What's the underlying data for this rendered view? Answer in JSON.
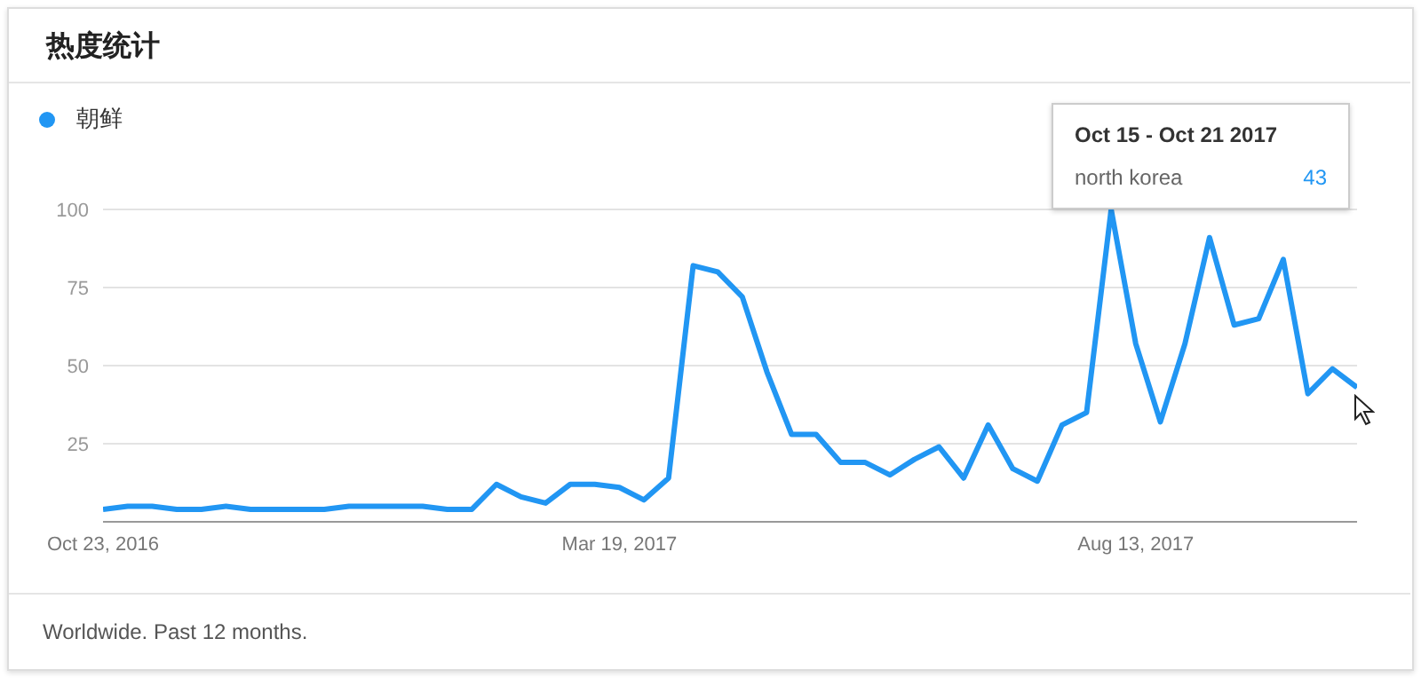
{
  "chart_data": {
    "type": "line",
    "title": "热度统计",
    "x": [
      "2016-10-23",
      "2016-10-30",
      "2016-11-06",
      "2016-11-13",
      "2016-11-20",
      "2016-11-27",
      "2016-12-04",
      "2016-12-11",
      "2016-12-18",
      "2016-12-25",
      "2017-01-01",
      "2017-01-08",
      "2017-01-15",
      "2017-01-22",
      "2017-01-29",
      "2017-02-05",
      "2017-02-12",
      "2017-02-19",
      "2017-02-26",
      "2017-03-05",
      "2017-03-12",
      "2017-03-19",
      "2017-03-26",
      "2017-04-02",
      "2017-04-09",
      "2017-04-16",
      "2017-04-23",
      "2017-04-30",
      "2017-05-07",
      "2017-05-14",
      "2017-05-21",
      "2017-05-28",
      "2017-06-04",
      "2017-06-11",
      "2017-06-18",
      "2017-06-25",
      "2017-07-02",
      "2017-07-09",
      "2017-07-16",
      "2017-07-23",
      "2017-07-30",
      "2017-08-06",
      "2017-08-13",
      "2017-08-20",
      "2017-08-27",
      "2017-09-03",
      "2017-09-10",
      "2017-09-17",
      "2017-09-24",
      "2017-10-01",
      "2017-10-08",
      "2017-10-15"
    ],
    "series": [
      {
        "name": "朝鲜",
        "color": "#2196f3",
        "values": [
          4,
          5,
          5,
          4,
          4,
          5,
          4,
          4,
          4,
          4,
          5,
          5,
          5,
          5,
          4,
          4,
          12,
          8,
          6,
          12,
          12,
          11,
          7,
          14,
          82,
          80,
          72,
          48,
          28,
          28,
          19,
          19,
          15,
          20,
          24,
          14,
          31,
          17,
          13,
          31,
          35,
          100,
          57,
          32,
          57,
          91,
          63,
          65,
          84,
          41,
          49,
          43
        ]
      }
    ],
    "xlim": [
      "2016-10-23",
      "2017-10-15"
    ],
    "xticks": [
      {
        "value": "2016-10-23",
        "label": "Oct 23, 2016"
      },
      {
        "value": "2017-03-19",
        "label": "Mar 19, 2017"
      },
      {
        "value": "2017-08-13",
        "label": "Aug 13, 2017"
      }
    ],
    "ylim": [
      0,
      100
    ],
    "yticks": [
      {
        "value": 0,
        "label": null
      },
      25,
      50,
      75,
      100
    ],
    "grid": "y",
    "legend": "top left",
    "marker": "none",
    "line_style": "solid",
    "annotations": [
      "Oct 15 - Oct 21 2017",
      "north korea",
      "43",
      "Worldwide. Past 12 months."
    ]
  }
}
